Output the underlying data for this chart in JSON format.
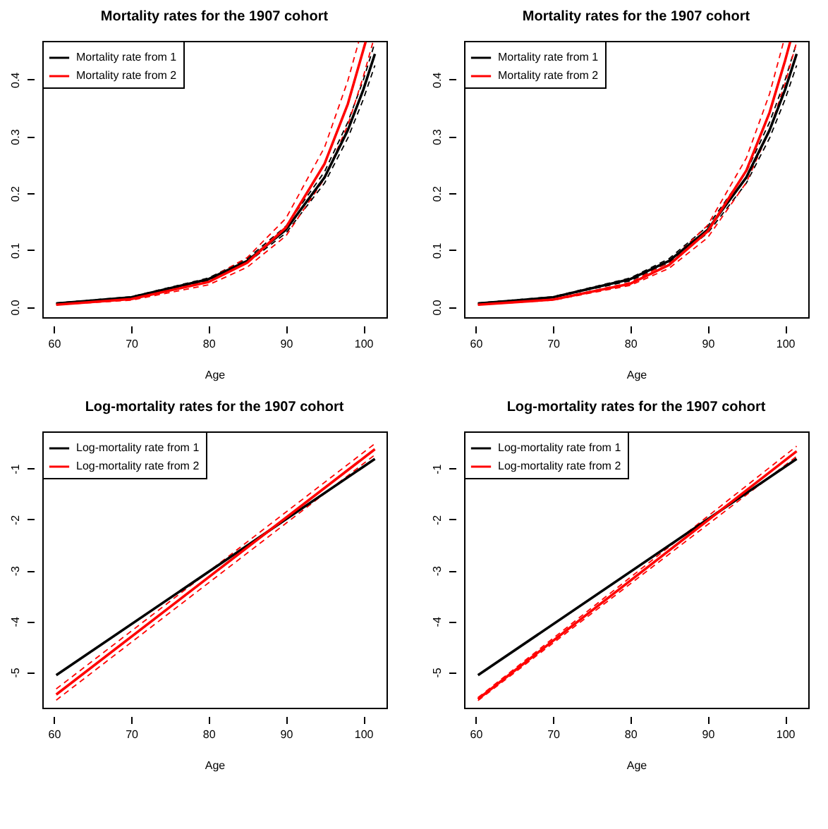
{
  "chart_data": [
    {
      "type": "line",
      "title": "Mortality rates for the 1907 cohort",
      "xlabel": "Age",
      "xlim": [
        58.5,
        103
      ],
      "xticks": [
        60,
        70,
        80,
        90,
        100
      ],
      "ylim": [
        -0.018,
        0.468
      ],
      "yticks": [
        {
          "value": 0,
          "label": "0.0"
        },
        0.1,
        0.2,
        0.3,
        0.4
      ],
      "legend": "top left",
      "grid": false,
      "series": [
        {
          "name": "Mortality rate from 1",
          "color": "#000000",
          "line_style": "solid",
          "x": [
            60.3,
            70,
            80,
            85,
            90,
            95,
            98,
            100,
            101.5
          ],
          "values": [
            0.006,
            0.017,
            0.049,
            0.081,
            0.136,
            0.228,
            0.311,
            0.382,
            0.445
          ]
        },
        {
          "color": "#000000",
          "line_style": "dashed",
          "x": [
            60.3,
            70,
            80,
            85,
            90,
            95,
            98,
            100,
            101.5
          ],
          "values": [
            0.007,
            0.018,
            0.051,
            0.085,
            0.142,
            0.238,
            0.325,
            0.399,
            0.465
          ]
        },
        {
          "color": "#000000",
          "line_style": "dashed",
          "x": [
            60.3,
            70,
            80,
            85,
            90,
            95,
            98,
            100,
            101.5
          ],
          "values": [
            0.006,
            0.017,
            0.046,
            0.078,
            0.13,
            0.218,
            0.297,
            0.365,
            0.425
          ]
        },
        {
          "name": "Mortality rate from 2",
          "color": "#ff0000",
          "line_style": "solid",
          "x": [
            60.3,
            70,
            80,
            85,
            90,
            95,
            98,
            100,
            100.3
          ],
          "values": [
            0.004,
            0.014,
            0.044,
            0.078,
            0.14,
            0.252,
            0.357,
            0.452,
            0.466
          ]
        },
        {
          "color": "#ff0000",
          "line_style": "dashed",
          "x": [
            60.3,
            70,
            80,
            85,
            90,
            95,
            98,
            99.4
          ],
          "values": [
            0.005,
            0.015,
            0.049,
            0.087,
            0.156,
            0.281,
            0.398,
            0.466
          ]
        },
        {
          "color": "#ff0000",
          "line_style": "dashed",
          "x": [
            60.3,
            70,
            80,
            85,
            90,
            95,
            98,
            100,
            101.25
          ],
          "values": [
            0.004,
            0.012,
            0.039,
            0.07,
            0.125,
            0.226,
            0.32,
            0.405,
            0.466
          ]
        }
      ]
    },
    {
      "type": "line",
      "title": "Mortality rates for the 1907 cohort",
      "xlabel": "Age",
      "xlim": [
        58.5,
        103
      ],
      "xticks": [
        60,
        70,
        80,
        90,
        100
      ],
      "ylim": [
        -0.018,
        0.468
      ],
      "yticks": [
        {
          "value": 0,
          "label": "0.0"
        },
        0.1,
        0.2,
        0.3,
        0.4
      ],
      "legend": "top left",
      "grid": false,
      "series": [
        {
          "name": "Mortality rate from 1",
          "color": "#000000",
          "line_style": "solid",
          "x": [
            60.3,
            70,
            80,
            85,
            90,
            95,
            98,
            100,
            101.5
          ],
          "values": [
            0.006,
            0.017,
            0.049,
            0.081,
            0.136,
            0.228,
            0.311,
            0.382,
            0.445
          ]
        },
        {
          "color": "#000000",
          "line_style": "dashed",
          "x": [
            60.3,
            70,
            80,
            85,
            90,
            95,
            98,
            100,
            101.5
          ],
          "values": [
            0.007,
            0.018,
            0.051,
            0.085,
            0.142,
            0.238,
            0.325,
            0.399,
            0.465
          ]
        },
        {
          "color": "#000000",
          "line_style": "dashed",
          "x": [
            60.3,
            70,
            80,
            85,
            90,
            95,
            98,
            100,
            101.5
          ],
          "values": [
            0.006,
            0.017,
            0.046,
            0.078,
            0.13,
            0.218,
            0.297,
            0.365,
            0.425
          ]
        },
        {
          "name": "Mortality rate from 2",
          "color": "#ff0000",
          "line_style": "solid",
          "x": [
            60.3,
            70,
            80,
            85,
            90,
            95,
            98,
            100,
            100.66
          ],
          "values": [
            0.004,
            0.013,
            0.041,
            0.074,
            0.133,
            0.24,
            0.342,
            0.433,
            0.466
          ]
        },
        {
          "color": "#ff0000",
          "line_style": "dashed",
          "x": [
            60.3,
            70,
            80,
            85,
            90,
            95,
            98,
            99.8
          ],
          "values": [
            0.004,
            0.013,
            0.043,
            0.079,
            0.144,
            0.262,
            0.375,
            0.466
          ]
        },
        {
          "color": "#ff0000",
          "line_style": "dashed",
          "x": [
            60.3,
            70,
            80,
            85,
            90,
            95,
            98,
            100,
            101.5
          ],
          "values": [
            0.004,
            0.012,
            0.038,
            0.068,
            0.122,
            0.219,
            0.311,
            0.393,
            0.466
          ]
        }
      ]
    },
    {
      "type": "line",
      "title": "Log-mortality rates for the 1907 cohort",
      "xlabel": "Age",
      "xlim": [
        58.5,
        103
      ],
      "xticks": [
        60,
        70,
        80,
        90,
        100
      ],
      "ylim": [
        -5.7,
        -0.27
      ],
      "yticks": [
        -5,
        -4,
        -3,
        -2,
        -1
      ],
      "legend": "top left",
      "grid": false,
      "series": [
        {
          "name": "Log-mortality rate from 1",
          "color": "#000000",
          "line_style": "solid",
          "x": [
            60.3,
            101.5
          ],
          "values": [
            -5.06,
            -0.81
          ]
        },
        {
          "name": "Log-mortality rate from 2",
          "color": "#ff0000",
          "line_style": "solid",
          "x": [
            60.3,
            101.5
          ],
          "values": [
            -5.44,
            -0.62
          ]
        },
        {
          "color": "#ff0000",
          "line_style": "dashed",
          "x": [
            60.3,
            101.5
          ],
          "values": [
            -5.33,
            -0.51
          ]
        },
        {
          "color": "#ff0000",
          "line_style": "dashed",
          "x": [
            60.3,
            101.5
          ],
          "values": [
            -5.55,
            -0.73
          ]
        }
      ]
    },
    {
      "type": "line",
      "title": "Log-mortality rates for the 1907 cohort",
      "xlabel": "Age",
      "xlim": [
        58.5,
        103
      ],
      "xticks": [
        60,
        70,
        80,
        90,
        100
      ],
      "ylim": [
        -5.7,
        -0.27
      ],
      "yticks": [
        -5,
        -4,
        -3,
        -2,
        -1
      ],
      "legend": "top left",
      "grid": false,
      "series": [
        {
          "name": "Log-mortality rate from 1",
          "color": "#000000",
          "line_style": "solid",
          "x": [
            60.3,
            101.5
          ],
          "values": [
            -5.06,
            -0.81
          ]
        },
        {
          "name": "Log-mortality rate from 2",
          "color": "#ff0000",
          "line_style": "solid",
          "x": [
            60.3,
            101.5
          ],
          "values": [
            -5.53,
            -0.66
          ]
        },
        {
          "color": "#ff0000",
          "line_style": "dashed",
          "x": [
            60.3,
            101.5
          ],
          "values": [
            -5.5,
            -0.56
          ]
        },
        {
          "color": "#ff0000",
          "line_style": "dashed",
          "x": [
            60.3,
            101.5
          ],
          "values": [
            -5.56,
            -0.76
          ]
        }
      ]
    }
  ]
}
